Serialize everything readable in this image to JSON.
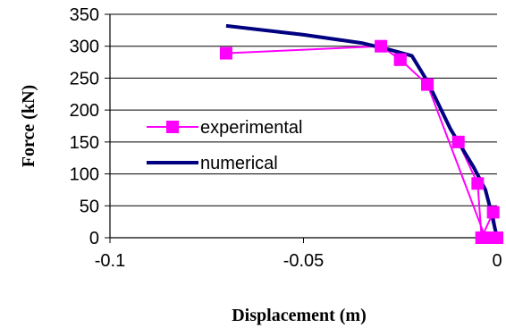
{
  "chart_data": {
    "type": "line",
    "title": "",
    "xlabel": "Displacement (m)",
    "ylabel": "Force (kN)",
    "xlim": [
      -0.1,
      0
    ],
    "ylim": [
      0,
      350
    ],
    "x_ticks": [
      -0.1,
      -0.05,
      0
    ],
    "x_tick_labels": [
      "-0.1",
      "-0.05",
      "0"
    ],
    "y_ticks": [
      0,
      50,
      100,
      150,
      200,
      250,
      300,
      350
    ],
    "y_tick_labels": [
      "0",
      "50",
      "100",
      "150",
      "200",
      "250",
      "300",
      "350"
    ],
    "grid": "horizontal",
    "legend": "center-left",
    "series": [
      {
        "name": "experimental",
        "color": "#ff00ff",
        "marker": "square",
        "points": [
          [
            -0.07,
            289
          ],
          [
            -0.03,
            300
          ],
          [
            -0.025,
            279
          ],
          [
            -0.018,
            240
          ],
          [
            -0.01,
            150
          ],
          [
            -0.005,
            85
          ],
          [
            -0.004,
            0
          ],
          [
            -0.001,
            40
          ],
          [
            0.0,
            0
          ],
          [
            -0.003,
            0
          ],
          [
            -0.018,
            240
          ],
          [
            -0.025,
            279
          ]
        ]
      },
      {
        "name": "numerical",
        "color": "#000080",
        "marker": "none",
        "points": [
          [
            -0.07,
            332
          ],
          [
            -0.05,
            318
          ],
          [
            -0.035,
            305
          ],
          [
            -0.028,
            295
          ],
          [
            -0.022,
            285
          ],
          [
            -0.018,
            245
          ],
          [
            -0.012,
            170
          ],
          [
            -0.006,
            110
          ],
          [
            -0.003,
            75
          ],
          [
            -0.0015,
            40
          ],
          [
            0.0,
            0
          ]
        ]
      }
    ]
  }
}
